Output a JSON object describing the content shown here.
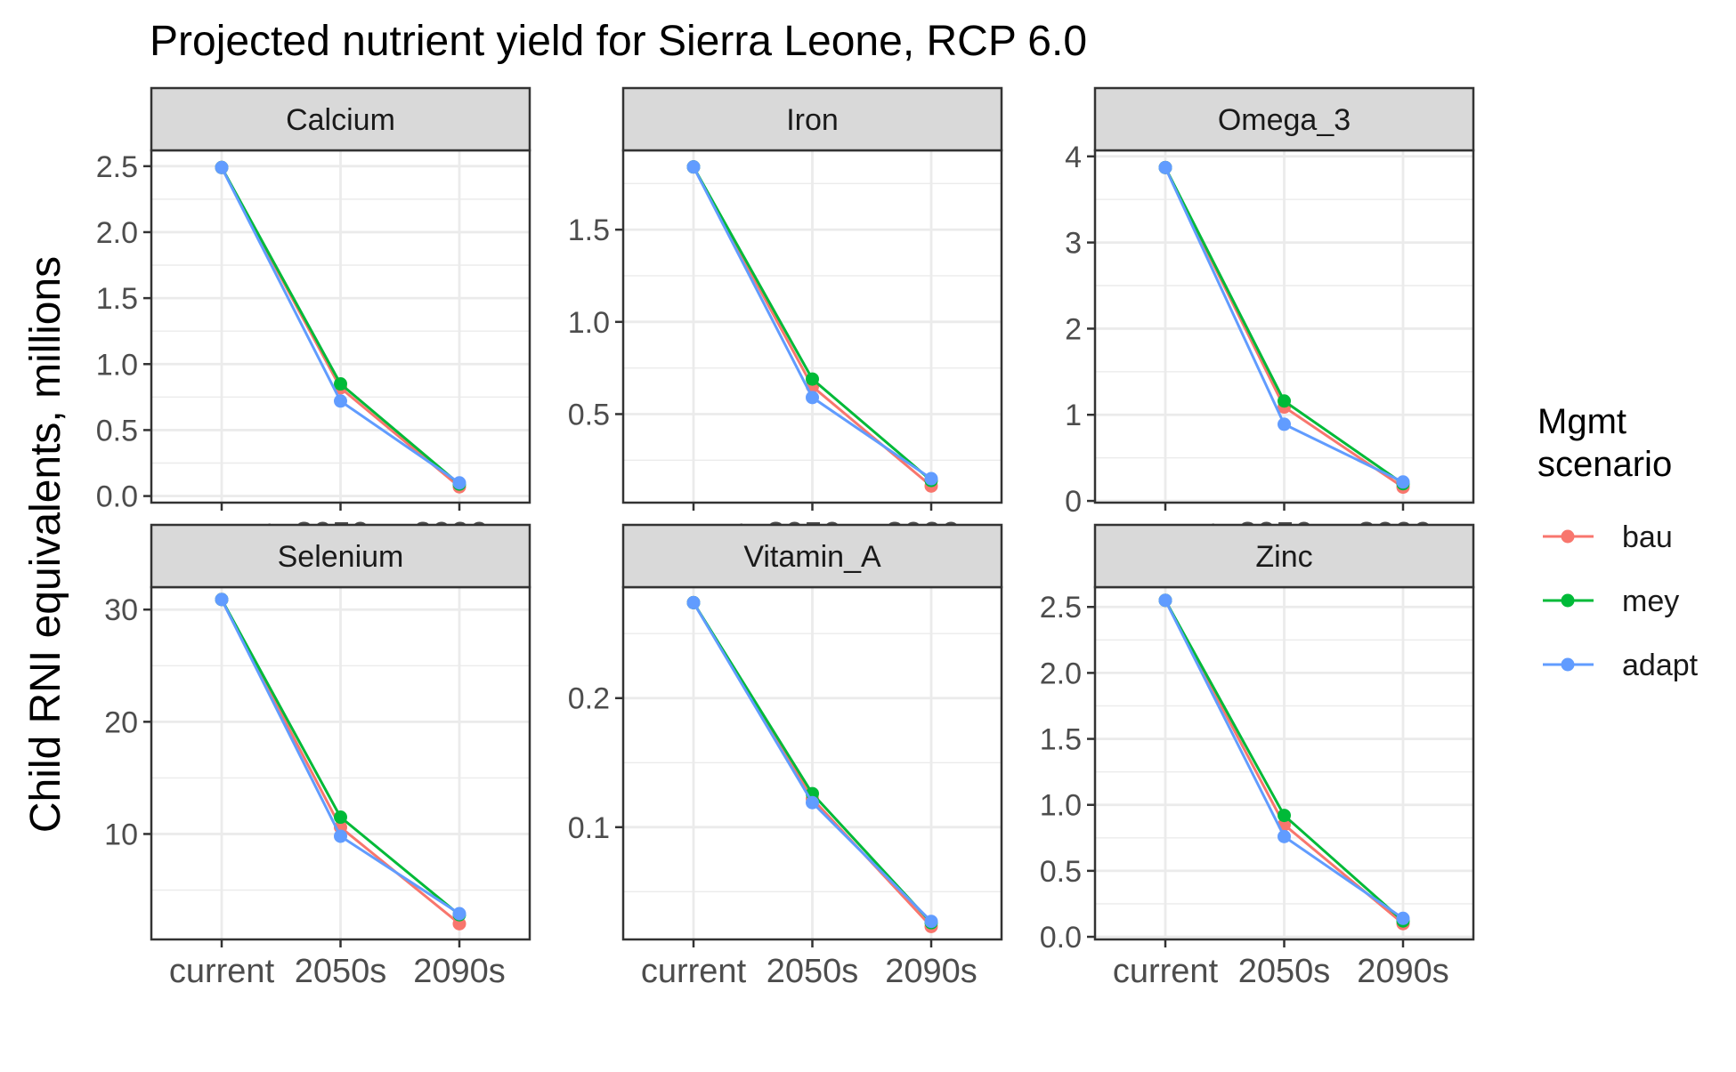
{
  "chart_data": {
    "type": "line",
    "title": "Projected nutrient yield for Sierra Leone, RCP 6.0",
    "ylabel": "Child RNI equivalents, millions",
    "xlabel": "",
    "categories": [
      "current",
      "2050s",
      "2090s"
    ],
    "grid": true,
    "legend": {
      "title": "Mgmt\nscenario",
      "placement": "right",
      "entries": [
        {
          "name": "bau",
          "color": "#F8766D"
        },
        {
          "name": "mey",
          "color": "#00BA38"
        },
        {
          "name": "adapt",
          "color": "#619CFF"
        }
      ]
    },
    "panels": [
      {
        "name": "Calcium",
        "ylim": [
          -0.05,
          2.62
        ],
        "yticks": [
          0.0,
          0.5,
          1.0,
          1.5,
          2.0,
          2.5
        ],
        "ytick_labels": [
          "0.0",
          "0.5",
          "1.0",
          "1.5",
          "2.0",
          "2.5"
        ],
        "series": [
          {
            "name": "bau",
            "values": [
              2.49,
              0.82,
              0.07
            ]
          },
          {
            "name": "mey",
            "values": [
              2.49,
              0.85,
              0.09
            ]
          },
          {
            "name": "adapt",
            "values": [
              2.49,
              0.72,
              0.1
            ]
          }
        ]
      },
      {
        "name": "Iron",
        "ylim": [
          0.02,
          1.93
        ],
        "yticks": [
          0.5,
          1.0,
          1.5
        ],
        "ytick_labels": [
          "0.5",
          "1.0",
          "1.5"
        ],
        "series": [
          {
            "name": "bau",
            "values": [
              1.84,
              0.65,
              0.11
            ]
          },
          {
            "name": "mey",
            "values": [
              1.84,
              0.69,
              0.14
            ]
          },
          {
            "name": "adapt",
            "values": [
              1.84,
              0.59,
              0.15
            ]
          }
        ]
      },
      {
        "name": "Omega_3",
        "ylim": [
          -0.02,
          4.07
        ],
        "yticks": [
          0,
          1,
          2,
          3,
          4
        ],
        "ytick_labels": [
          "0",
          "1",
          "2",
          "3",
          "4"
        ],
        "series": [
          {
            "name": "bau",
            "values": [
              3.87,
              1.09,
              0.16
            ]
          },
          {
            "name": "mey",
            "values": [
              3.87,
              1.16,
              0.2
            ]
          },
          {
            "name": "adapt",
            "values": [
              3.87,
              0.89,
              0.22
            ]
          }
        ]
      },
      {
        "name": "Selenium",
        "ylim": [
          0.6,
          32.0
        ],
        "yticks": [
          10,
          20,
          30
        ],
        "ytick_labels": [
          "10",
          "20",
          "30"
        ],
        "series": [
          {
            "name": "bau",
            "values": [
              30.9,
              10.6,
              2.0
            ]
          },
          {
            "name": "mey",
            "values": [
              30.9,
              11.5,
              2.8
            ]
          },
          {
            "name": "adapt",
            "values": [
              30.9,
              9.8,
              2.9
            ]
          }
        ]
      },
      {
        "name": "Vitamin_A",
        "ylim": [
          0.013,
          0.286
        ],
        "yticks": [
          0.1,
          0.2
        ],
        "ytick_labels": [
          "0.1",
          "0.2"
        ],
        "series": [
          {
            "name": "bau",
            "values": [
              0.274,
              0.122,
              0.023
            ]
          },
          {
            "name": "mey",
            "values": [
              0.274,
              0.126,
              0.026
            ]
          },
          {
            "name": "adapt",
            "values": [
              0.274,
              0.119,
              0.027
            ]
          }
        ]
      },
      {
        "name": "Zinc",
        "ylim": [
          -0.02,
          2.65
        ],
        "yticks": [
          0.0,
          0.5,
          1.0,
          1.5,
          2.0,
          2.5
        ],
        "ytick_labels": [
          "0.0",
          "0.5",
          "1.0",
          "1.5",
          "2.0",
          "2.5"
        ],
        "series": [
          {
            "name": "bau",
            "values": [
              2.55,
              0.85,
              0.1
            ]
          },
          {
            "name": "mey",
            "values": [
              2.55,
              0.92,
              0.12
            ]
          },
          {
            "name": "adapt",
            "values": [
              2.55,
              0.76,
              0.14
            ]
          }
        ]
      }
    ]
  }
}
